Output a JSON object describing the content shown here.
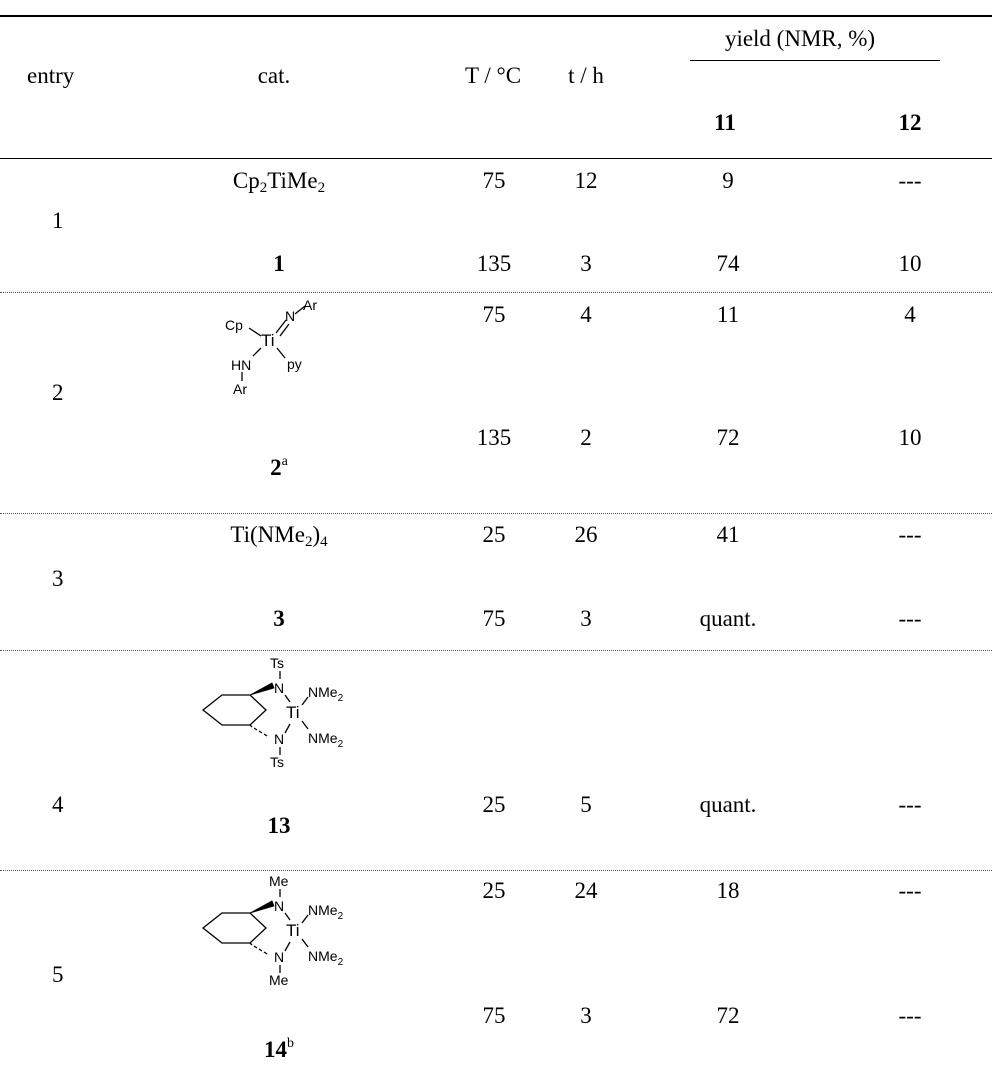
{
  "header": {
    "entry": "entry",
    "cat": "cat.",
    "temp": "T / °C",
    "time": "t / h",
    "yield": "yield (NMR, %)",
    "c11": "11",
    "c12": "12"
  },
  "rows": [
    {
      "entry": "1",
      "cat_formula": "Cp2TiMe2",
      "cat_main": "Cp",
      "cat_sub1": "2",
      "cat_mid": "TiMe",
      "cat_sub2": "2",
      "label": "1",
      "label_sup": "",
      "conds": [
        {
          "T": "75",
          "t": "12",
          "y11": "9",
          "y12": "---"
        },
        {
          "T": "135",
          "t": "3",
          "y11": "74",
          "y12": "10"
        }
      ]
    },
    {
      "entry": "2",
      "label": "2",
      "label_sup": "a",
      "struct": {
        "cp": "Cp",
        "n": "N",
        "ar": "Ar",
        "ti": "Ti",
        "hn": "HN",
        "py": "py",
        "ar2": "Ar"
      },
      "conds": [
        {
          "T": "75",
          "t": "4",
          "y11": "11",
          "y12": "4"
        },
        {
          "T": "135",
          "t": "2",
          "y11": "72",
          "y12": "10"
        }
      ]
    },
    {
      "entry": "3",
      "cat_main": "Ti(NMe",
      "cat_sub1": "2",
      "cat_tail": ")",
      "cat_sub2": "4",
      "label": "3",
      "label_sup": "",
      "conds": [
        {
          "T": "25",
          "t": "26",
          "y11": "41",
          "y12": "---"
        },
        {
          "T": "75",
          "t": "3",
          "y11": "quant.",
          "y12": "---"
        }
      ]
    },
    {
      "entry": "4",
      "label": "13",
      "label_sup": "",
      "struct": {
        "r_top": "Ts",
        "n_top": "N",
        "nme2_top": "NMe",
        "nme2_sub": "2",
        "ti": "Ti",
        "n_bot": "N",
        "nme2_bot": "NMe",
        "r_bot": "Ts"
      },
      "conds": [
        {
          "T": "25",
          "t": "5",
          "y11": "quant.",
          "y12": "---"
        }
      ]
    },
    {
      "entry": "5",
      "label": "14",
      "label_sup": "b",
      "struct": {
        "r_top": "Me",
        "n_top": "N",
        "nme2_top": "NMe",
        "nme2_sub": "2",
        "ti": "Ti",
        "n_bot": "N",
        "nme2_bot": "NMe",
        "r_bot": "Me"
      },
      "conds": [
        {
          "T": "25",
          "t": "24",
          "y11": "18",
          "y12": "---"
        },
        {
          "T": "75",
          "t": "3",
          "y11": "72",
          "y12": "---"
        }
      ]
    }
  ]
}
